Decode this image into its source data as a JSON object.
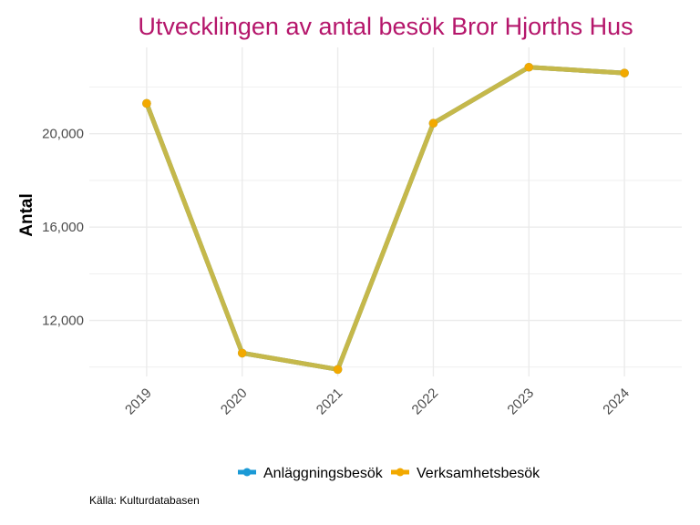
{
  "colors": {
    "title": "#b5166b",
    "grid": "#ebebeb",
    "combined_line": "#c5b84b",
    "series_anlaggning": "#1b9ad6",
    "series_verksamhet": "#f2a900"
  },
  "chart_data": {
    "type": "line",
    "title": "Utvecklingen av antal besök Bror Hjorths Hus",
    "ylabel": "Antal",
    "xlabel": "",
    "x": [
      "2019",
      "2020",
      "2021",
      "2022",
      "2023",
      "2024"
    ],
    "series": [
      {
        "name": "Anläggningsbesök",
        "values": [
          21300,
          10600,
          9900,
          20450,
          22850,
          22600
        ]
      },
      {
        "name": "Verksamhetsbesök",
        "values": [
          21300,
          10600,
          9900,
          20450,
          22850,
          22600
        ]
      }
    ],
    "yticks": [
      12000,
      16000,
      20000
    ],
    "ytick_labels": [
      "12,000",
      "16,000",
      "20,000"
    ],
    "ylim": [
      9600,
      23700
    ],
    "grid": true,
    "legend_position": "bottom",
    "caption": "Källa: Kulturdatabasen"
  }
}
